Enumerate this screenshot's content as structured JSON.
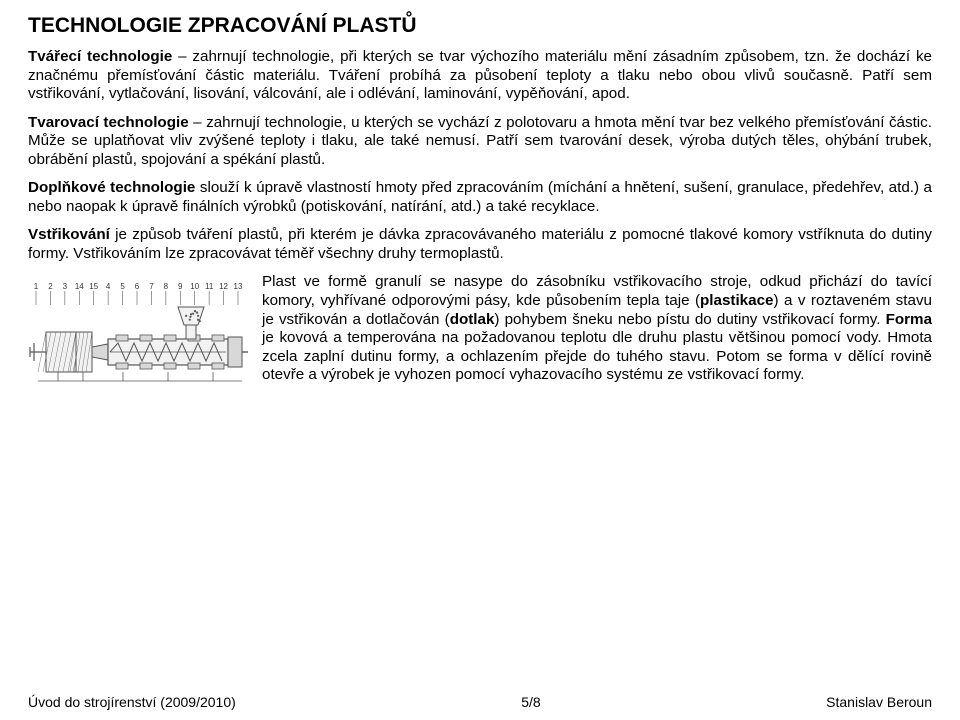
{
  "title": "TECHNOLOGIE ZPRACOVÁNÍ PLASTŮ",
  "p1": {
    "lead": "Tvářecí technologie",
    "rest": " – zahrnují technologie, při kterých se tvar výchozího materiálu mění zásadním způsobem, tzn. že dochází ke značnému přemísťování částic materiálu. Tváření probíhá za působení teploty a tlaku nebo obou vlivů současně. Patří sem vstřikování, vytlačování, lisování, válcování, ale i odlévání, laminování, vypěňování, apod."
  },
  "p2": {
    "lead": "Tvarovací technologie",
    "rest": " – zahrnují technologie, u kterých se vychází z polotovaru a hmota mění tvar bez velkého přemísťování částic. Může se uplatňovat vliv zvýšené teploty i tlaku, ale také nemusí. Patří sem tvarování desek, výroba dutých těles, ohýbání trubek, obrábění plastů, spojování a spékání plastů."
  },
  "p3": {
    "lead": "Doplňkové technologie",
    "rest": " slouží k úpravě vlastností hmoty před zpracováním (míchání a hnětení, sušení, granulace, předehřev, atd.) a nebo naopak k úpravě finálních výrobků (potiskování, natírání, atd.) a také recyklace."
  },
  "p4": {
    "lead": "Vstřikování",
    "rest": " je způsob tváření plastů, při kterém je dávka zpracovávaného materiálu z pomocné tlakové komory vstříknuta do dutiny formy. Vstřikováním lze zpracovávat téměř všechny druhy termoplastů."
  },
  "p5": {
    "a": "Plast ve formě granulí se nasype do zásobníku vstřikovacího stroje, odkud přichází do tavící komory, vyhřívané odporovými pásy, kde působením tepla taje (",
    "b1": "plastikace",
    "c": ") a v roztaveném stavu je vstřikován a dotlačován (",
    "b2": "dotlak",
    "d": ") pohybem šneku nebo pístu do dutiny vstřikovací formy. ",
    "b3": "Forma",
    "e": " je kovová a temperována na požadovanou teplotu dle druhu plastu většinou pomocí vody. Hmota zcela zaplní dutinu formy, a ochlazením přejde do tuhého stavu. Potom se forma v dělící rovině otevře a výrobek je vyhozen pomocí vyhazovacího systému ze vstřikovací formy."
  },
  "figure": {
    "numbers": [
      "1",
      "2",
      "3",
      "14",
      "15",
      "4",
      "5",
      "6",
      "7",
      "8",
      "9",
      "10",
      "11",
      "12",
      "13"
    ],
    "stroke": "#555555",
    "fill_light": "#f2f2f2",
    "fill_mid": "#d8d8d8"
  },
  "footer": {
    "left": "Úvod do strojírenství (2009/2010)",
    "center": "5/8",
    "right": "Stanislav Beroun"
  }
}
